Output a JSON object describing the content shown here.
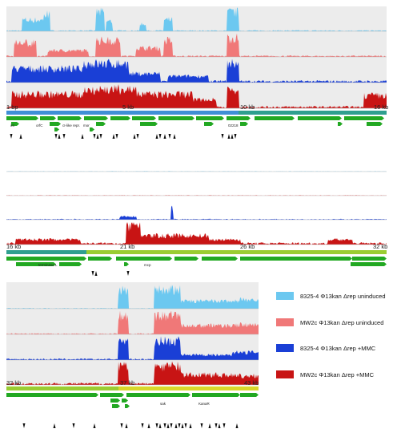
{
  "panels": [
    {
      "id": "panel-1",
      "start_label": "1 bp",
      "tick_labels": [
        "5 kb",
        "10 kb",
        "16 kb"
      ],
      "gene_labels": [
        "int",
        "orfC",
        "cI-like repr.",
        "mor",
        "02218"
      ]
    },
    {
      "id": "panel-2",
      "start_label": "16 kb",
      "tick_labels": [
        "21 kb",
        "26 kb",
        "32 kb"
      ],
      "gene_labels": [
        "terminase L",
        "mcp"
      ]
    },
    {
      "id": "panel-3",
      "start_label": "32 kb",
      "tick_labels": [
        "37 kb",
        "43 kb"
      ],
      "gene_labels": [
        "sak",
        "KanaR"
      ]
    }
  ],
  "legend": [
    {
      "label": "8325-4 Φ13kan Δrep uninduced",
      "color": "#6cc8f0"
    },
    {
      "label": "MW2c Φ13kan Δrep uninduced",
      "color": "#f07878"
    },
    {
      "label": "8325-4 Φ13kan Δrep +MMC",
      "color": "#1a3fd6"
    },
    {
      "label": "MW2c Φ13kan Δrep +MMC",
      "color": "#c81414"
    }
  ],
  "colors": {
    "track_light_blue": "#6cc8f0",
    "track_light_red": "#f07878",
    "track_blue": "#1a3fd6",
    "track_red": "#c81414",
    "gene_green": "#22a822",
    "highlight": "#e4e4e4"
  }
}
